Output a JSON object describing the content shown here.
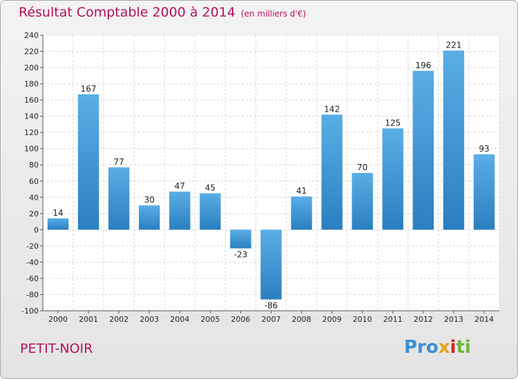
{
  "header": {
    "title": "Résultat Comptable 2000 à 2014",
    "subtitle": "(en milliers d'€)"
  },
  "footer": {
    "commune": "PETIT-NOIR",
    "logo_parts": [
      "Pro",
      "x",
      "i",
      "ti"
    ]
  },
  "colors": {
    "title": "#b5115c",
    "bar_top": "#5aaee6",
    "bar_bottom": "#2a7fc0"
  },
  "chart_data": {
    "type": "bar",
    "title": "Résultat Comptable 2000 à 2014",
    "subtitle": "(en milliers d'€)",
    "xlabel": "",
    "ylabel": "",
    "categories": [
      "2000",
      "2001",
      "2002",
      "2003",
      "2004",
      "2005",
      "2006",
      "2007",
      "2008",
      "2009",
      "2010",
      "2011",
      "2012",
      "2013",
      "2014"
    ],
    "values": [
      14,
      167,
      77,
      30,
      47,
      45,
      -23,
      -86,
      41,
      142,
      70,
      125,
      196,
      221,
      93
    ],
    "ylim": [
      -100,
      240
    ],
    "yticks": [
      -100,
      -80,
      -60,
      -40,
      -20,
      0,
      20,
      40,
      60,
      80,
      100,
      120,
      140,
      160,
      180,
      200,
      220,
      240
    ],
    "grid": true
  }
}
